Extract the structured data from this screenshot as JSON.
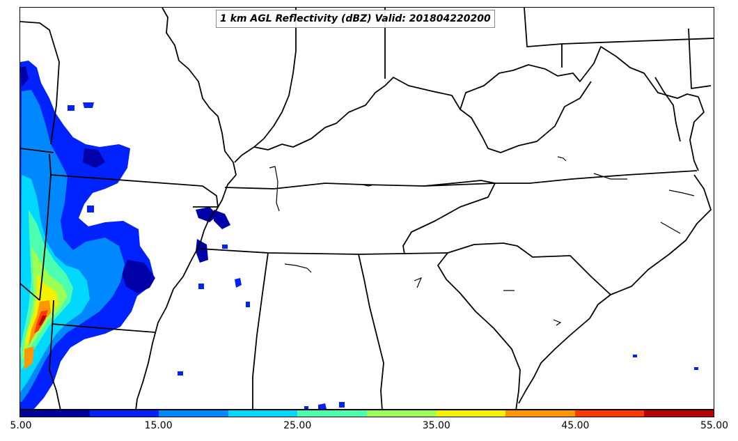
{
  "title": "1 km AGL Reflectivity (dBZ) Valid: 201804220200",
  "colorbar": {
    "labels": [
      "5.00",
      "15.00",
      "25.00",
      "35.00",
      "45.00",
      "55.00"
    ],
    "colors": [
      "#00009c",
      "#0022ff",
      "#0088ff",
      "#00d8ff",
      "#4cffb0",
      "#9cff56",
      "#f4f000",
      "#ff9800",
      "#ff3a00",
      "#b80000"
    ]
  }
}
